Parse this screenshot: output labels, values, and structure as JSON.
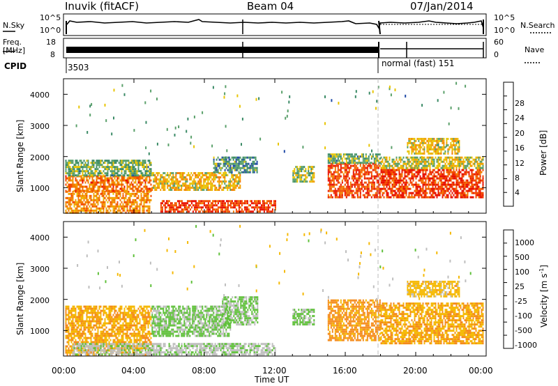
{
  "header": {
    "station": "Inuvik (fitACF)",
    "beam": "Beam 04",
    "date": "07/Jan/2014"
  },
  "meta_panels": {
    "nsky_label": "N.Sky",
    "nsky_ticks": [
      "10^5",
      "10^0"
    ],
    "nsearch_label": "N.Search",
    "nsearch_ticks": [
      "10^5",
      "10^0"
    ],
    "freq_label_1": "Freq.",
    "freq_label_2": "[MHz]",
    "freq_ticks": [
      "18",
      "8"
    ],
    "nave_label": "Nave",
    "nave_ticks": [
      "60",
      "0"
    ],
    "cpid_label": "CPID",
    "cpid_first": "3503",
    "cpid_second": "normal (fast) 151"
  },
  "axes": {
    "ylabel_top": "Slant Range [km]",
    "ylabel_bottom": "Slant Range [km]",
    "xlabel": "Time UT",
    "yticks": [
      "1000",
      "2000",
      "3000",
      "4000"
    ],
    "xticks": [
      "00:00",
      "04:00",
      "08:00",
      "12:00",
      "16:00",
      "20:00",
      "00:00"
    ]
  },
  "power_scale": {
    "label": "Power [dB]",
    "ticks": [
      "4",
      "8",
      "12",
      "16",
      "20",
      "24",
      "28"
    ],
    "colors": [
      "#0a1ae0",
      "#1f4aa6",
      "#3a8a66",
      "#5aa06a",
      "#e8c400",
      "#f2a000",
      "#f37a00",
      "#f24a00",
      "#e81000"
    ]
  },
  "velocity_scale": {
    "label": "Velocity [m s",
    "label_sup": "-1",
    "label_end": "]",
    "ticks": [
      "1000",
      "500",
      "100",
      "25",
      "-25",
      "-100",
      "-500",
      "-1000"
    ],
    "colors": [
      "#1d3fc4",
      "#2a6a9a",
      "#3b8a6a",
      "#5fc03a",
      "#bebebe",
      "#f5b800",
      "#f48a1a",
      "#f35a10",
      "#e8120a"
    ]
  },
  "chart_data": [
    {
      "type": "heatmap",
      "title": "Power",
      "xlabel": "Time UT",
      "ylabel": "Slant Range [km]",
      "xlim": [
        0,
        24
      ],
      "ylim": [
        180,
        4500
      ],
      "colorbar": "Power [dB]",
      "colorbar_range": [
        0,
        32
      ],
      "blocks": [
        {
          "t0": 0.1,
          "t1": 5.0,
          "r0": 200,
          "r1": 900,
          "v": 22
        },
        {
          "t0": 0.1,
          "t1": 5.0,
          "r0": 900,
          "r1": 1400,
          "v": 24
        },
        {
          "t0": 0.1,
          "t1": 5.0,
          "r0": 1400,
          "r1": 1900,
          "v": 12
        },
        {
          "t0": 5.0,
          "t1": 10.0,
          "r0": 900,
          "r1": 1500,
          "v": 18
        },
        {
          "t0": 5.5,
          "t1": 12.0,
          "r0": 200,
          "r1": 600,
          "v": 28
        },
        {
          "t0": 8.5,
          "t1": 11.0,
          "r0": 1500,
          "r1": 2000,
          "v": 10
        },
        {
          "t0": 13.0,
          "t1": 14.2,
          "r0": 1200,
          "r1": 1700,
          "v": 14
        },
        {
          "t0": 15.0,
          "t1": 18.0,
          "r0": 700,
          "r1": 1800,
          "v": 27
        },
        {
          "t0": 15.0,
          "t1": 18.0,
          "r0": 1800,
          "r1": 2100,
          "v": 12
        },
        {
          "t0": 18.0,
          "t1": 23.8,
          "r0": 700,
          "r1": 1600,
          "v": 28
        },
        {
          "t0": 18.0,
          "t1": 23.8,
          "r0": 1600,
          "r1": 2000,
          "v": 16
        },
        {
          "t0": 19.5,
          "t1": 22.5,
          "r0": 2100,
          "r1": 2600,
          "v": 18
        }
      ]
    },
    {
      "type": "heatmap",
      "title": "Velocity",
      "xlabel": "Time UT",
      "ylabel": "Slant Range [km]",
      "xlim": [
        0,
        24
      ],
      "ylim": [
        180,
        4500
      ],
      "colorbar": "Velocity [m s-1]",
      "colorbar_range": [
        -1000,
        1000
      ],
      "blocks": [
        {
          "t0": 0.1,
          "t1": 5.0,
          "r0": 250,
          "r1": 1800,
          "v": -300
        },
        {
          "t0": 5.0,
          "t1": 9.5,
          "r0": 800,
          "r1": 1800,
          "v": 150
        },
        {
          "t0": 9.0,
          "t1": 11.0,
          "r0": 1200,
          "r1": 2100,
          "v": 150
        },
        {
          "t0": 0.5,
          "t1": 12.0,
          "r0": 200,
          "r1": 600,
          "v": 50
        },
        {
          "t0": 13.0,
          "t1": 14.2,
          "r0": 1200,
          "r1": 1700,
          "v": 150
        },
        {
          "t0": 15.0,
          "t1": 18.0,
          "r0": 700,
          "r1": 2000,
          "v": -400
        },
        {
          "t0": 18.0,
          "t1": 23.8,
          "r0": 600,
          "r1": 1900,
          "v": -300
        },
        {
          "t0": 19.5,
          "t1": 22.5,
          "r0": 2100,
          "r1": 2600,
          "v": -200
        }
      ]
    }
  ]
}
